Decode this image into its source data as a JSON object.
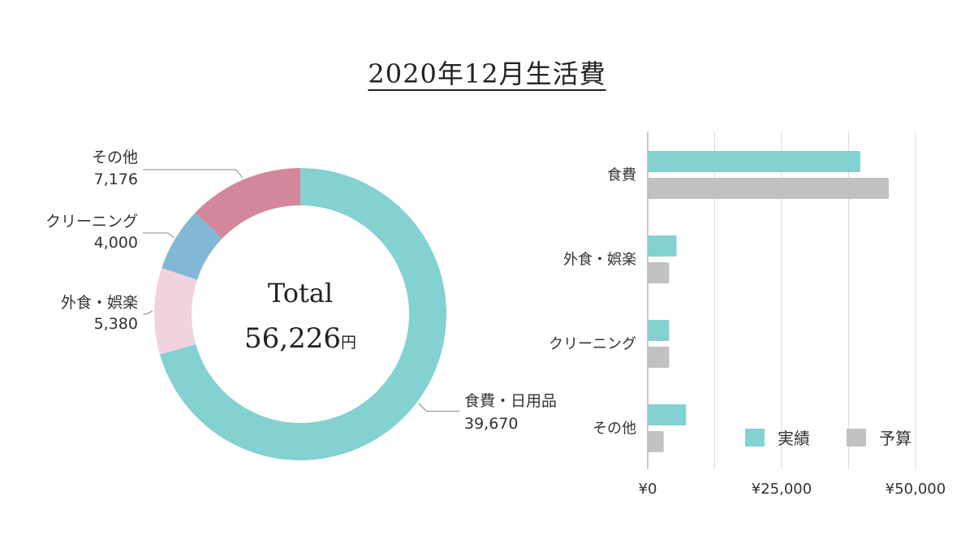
{
  "title": "2020年12月生活費",
  "colors": {
    "actual": "#83d1d0",
    "budget": "#c1c1c1",
    "seg_food": "#83d1d0",
    "seg_dining": "#f1d2de",
    "seg_cleaning": "#82b8d6",
    "seg_other": "#d3879a"
  },
  "chart_data": [
    {
      "type": "pie",
      "variant": "donut",
      "center_label": "Total",
      "center_value": "56,226",
      "center_unit": "円",
      "slices": [
        {
          "label": "食費・日用品",
          "value": 39670,
          "display": "39,670",
          "color": "#83d1d0"
        },
        {
          "label": "外食・娯楽",
          "value": 5380,
          "display": "5,380",
          "color": "#f1d2de"
        },
        {
          "label": "クリーニング",
          "value": 4000,
          "display": "4,000",
          "color": "#82b8d6"
        },
        {
          "label": "その他",
          "value": 7176,
          "display": "7,176",
          "color": "#d3879a"
        }
      ]
    },
    {
      "type": "bar",
      "orientation": "horizontal",
      "categories": [
        "食費",
        "外食・娯楽",
        "クリーニング",
        "その他"
      ],
      "series": [
        {
          "name": "実績",
          "values": [
            39670,
            5380,
            4000,
            7176
          ],
          "color": "#83d1d0"
        },
        {
          "name": "予算",
          "values": [
            45000,
            4000,
            4000,
            3000
          ],
          "color": "#c1c1c1"
        }
      ],
      "xlim": [
        0,
        50000
      ],
      "xticks": [
        "¥0",
        "¥25,000",
        "¥50,000"
      ],
      "xtick_values": [
        0,
        25000,
        50000
      ],
      "grid": true,
      "legend": "bottom-right"
    }
  ]
}
